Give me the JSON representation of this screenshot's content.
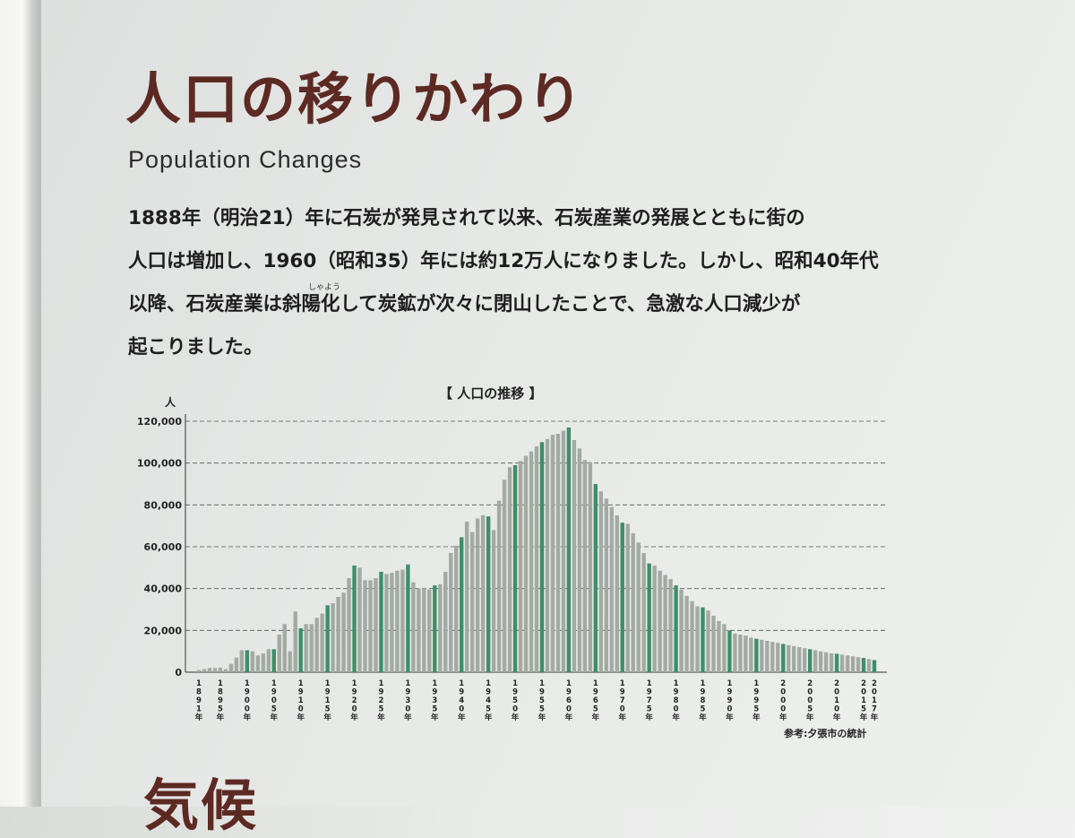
{
  "title": "人口の移りかわり",
  "subtitle": "Population Changes",
  "paragraph": [
    "1888年（明治21）年に石炭が発見されて以来、石炭産業の発展とともに街の",
    "人口は増加し、1960（昭和35）年には約12万人になりました。しかし、昭和40年代",
    "以降、石炭産業は斜陽化して炭鉱が次々に閉山したことで、急激な人口減少が",
    "起こりました。"
  ],
  "ruby": "しゃよう",
  "next_heading": "気候",
  "colors": {
    "title": "#5c2a23",
    "bar_normal": "#a3aaa4",
    "bar_highlight": "#3f8e68",
    "gridline": "#555555"
  },
  "chart_data": {
    "type": "bar",
    "title": "【 人口の推移 】",
    "ylabel": "人",
    "source": "参考:夕張市の統計",
    "ylim": [
      0,
      120000
    ],
    "yticks": [
      0,
      20000,
      40000,
      60000,
      80000,
      100000,
      120000
    ],
    "ytick_labels": [
      "0",
      "20,000",
      "40,000",
      "60,000",
      "80,000",
      "100,000",
      "120,000"
    ],
    "grid": "dashed horizontal",
    "x_labels": [
      {
        "year": 1891,
        "label": "1891年"
      },
      {
        "year": 1895,
        "label": "1895年"
      },
      {
        "year": 1900,
        "label": "1900年"
      },
      {
        "year": 1905,
        "label": "1905年"
      },
      {
        "year": 1910,
        "label": "1910年"
      },
      {
        "year": 1915,
        "label": "1915年"
      },
      {
        "year": 1920,
        "label": "1920年"
      },
      {
        "year": 1925,
        "label": "1925年"
      },
      {
        "year": 1930,
        "label": "1930年"
      },
      {
        "year": 1935,
        "label": "1935年"
      },
      {
        "year": 1940,
        "label": "1940年"
      },
      {
        "year": 1945,
        "label": "1945年"
      },
      {
        "year": 1950,
        "label": "1950年"
      },
      {
        "year": 1955,
        "label": "1955年"
      },
      {
        "year": 1960,
        "label": "1960年"
      },
      {
        "year": 1965,
        "label": "1965年"
      },
      {
        "year": 1970,
        "label": "1970年"
      },
      {
        "year": 1975,
        "label": "1975年"
      },
      {
        "year": 1980,
        "label": "1980年"
      },
      {
        "year": 1985,
        "label": "1985年"
      },
      {
        "year": 1990,
        "label": "1990年"
      },
      {
        "year": 1995,
        "label": "1995年"
      },
      {
        "year": 2000,
        "label": "2000年"
      },
      {
        "year": 2005,
        "label": "2005年"
      },
      {
        "year": 2010,
        "label": "2010年"
      },
      {
        "year": 2015,
        "label": "2015年"
      },
      {
        "year": 2017,
        "label": "2017年"
      }
    ],
    "highlight_years": [
      1900,
      1905,
      1910,
      1915,
      1920,
      1925,
      1930,
      1935,
      1940,
      1945,
      1950,
      1955,
      1960,
      1965,
      1970,
      1975,
      1980,
      1985,
      1990,
      1995,
      2000,
      2005,
      2010,
      2015,
      2017
    ],
    "years": [
      1891,
      1892,
      1893,
      1894,
      1895,
      1896,
      1897,
      1898,
      1899,
      1900,
      1901,
      1902,
      1903,
      1904,
      1905,
      1906,
      1907,
      1908,
      1909,
      1910,
      1911,
      1912,
      1913,
      1914,
      1915,
      1916,
      1917,
      1918,
      1919,
      1920,
      1921,
      1922,
      1923,
      1924,
      1925,
      1926,
      1927,
      1928,
      1929,
      1930,
      1931,
      1932,
      1933,
      1934,
      1935,
      1936,
      1937,
      1938,
      1939,
      1940,
      1941,
      1942,
      1943,
      1944,
      1945,
      1946,
      1947,
      1948,
      1949,
      1950,
      1951,
      1952,
      1953,
      1954,
      1955,
      1956,
      1957,
      1958,
      1959,
      1960,
      1961,
      1962,
      1963,
      1964,
      1965,
      1966,
      1967,
      1968,
      1969,
      1970,
      1971,
      1972,
      1973,
      1974,
      1975,
      1976,
      1977,
      1978,
      1979,
      1980,
      1981,
      1982,
      1983,
      1984,
      1985,
      1986,
      1987,
      1988,
      1989,
      1990,
      1991,
      1992,
      1993,
      1994,
      1995,
      1996,
      1997,
      1998,
      1999,
      2000,
      2001,
      2002,
      2003,
      2004,
      2005,
      2006,
      2007,
      2008,
      2009,
      2010,
      2011,
      2012,
      2013,
      2014,
      2015,
      2016,
      2017
    ],
    "values": [
      1000,
      1500,
      2000,
      2000,
      2200,
      1500,
      4000,
      7000,
      10500,
      10500,
      10000,
      8000,
      9000,
      11000,
      11000,
      18000,
      23000,
      10000,
      29000,
      21000,
      23000,
      23000,
      26000,
      28000,
      32000,
      33000,
      36000,
      38000,
      45000,
      51000,
      50000,
      44000,
      44000,
      45000,
      48000,
      47000,
      47500,
      48500,
      49000,
      51500,
      43000,
      40000,
      40000,
      39500,
      41500,
      42000,
      48000,
      57000,
      60500,
      64500,
      72000,
      67000,
      73500,
      75000,
      74500,
      68000,
      82000,
      92000,
      98000,
      99000,
      101000,
      103500,
      105500,
      108000,
      110000,
      111500,
      113500,
      114000,
      115500,
      117000,
      111000,
      107000,
      101500,
      100500,
      90000,
      86500,
      83000,
      79000,
      75000,
      71500,
      71000,
      66500,
      62000,
      57000,
      52000,
      51000,
      48500,
      46500,
      44500,
      41500,
      39500,
      36500,
      34000,
      31500,
      31000,
      29500,
      27000,
      24500,
      23000,
      20000,
      18500,
      18000,
      17500,
      16500,
      16000,
      15500,
      15000,
      14500,
      14000,
      13500,
      13000,
      12500,
      12000,
      11500,
      11000,
      10500,
      10000,
      9500,
      9000,
      8800,
      8400,
      8000,
      7600,
      7200,
      6800,
      6300,
      5800
    ]
  }
}
